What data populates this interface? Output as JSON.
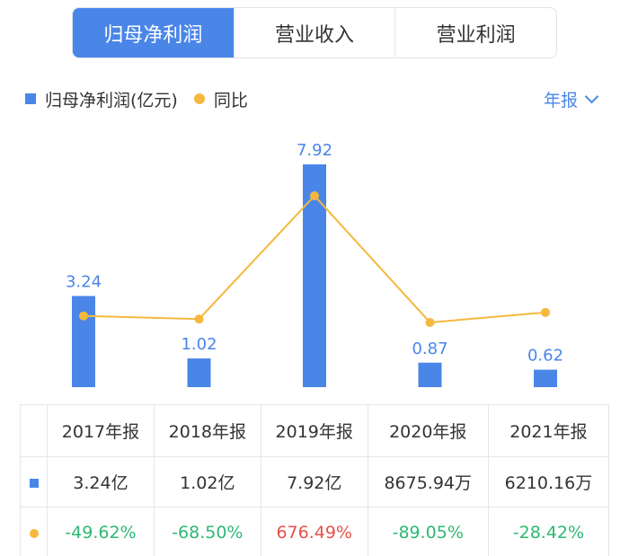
{
  "tabs": [
    {
      "label": "归母净利润",
      "active": true
    },
    {
      "label": "营业收入",
      "active": false
    },
    {
      "label": "营业利润",
      "active": false
    }
  ],
  "legend": {
    "bar_label": "归母净利润(亿元)",
    "line_label": "同比"
  },
  "period": {
    "label": "年报"
  },
  "colors": {
    "bar": "#4a86e8",
    "line": "#f5b83d",
    "negative": "#2eb872",
    "positive": "#e8504a"
  },
  "chart_data": {
    "type": "bar",
    "categories": [
      "2017年报",
      "2018年报",
      "2019年报",
      "2020年报",
      "2021年报"
    ],
    "series": [
      {
        "name": "归母净利润(亿元)",
        "type": "bar",
        "values": [
          3.24,
          1.02,
          7.92,
          0.87,
          0.62
        ],
        "labels": [
          "3.24",
          "1.02",
          "7.92",
          "0.87",
          "0.62"
        ]
      },
      {
        "name": "同比",
        "type": "line",
        "values": [
          -49.62,
          -68.5,
          676.49,
          -89.05,
          -28.42
        ]
      }
    ],
    "ylim": [
      0,
      7.92
    ],
    "line_ylim": [
      -100,
      676.49
    ],
    "grid": false,
    "legend": "top-left"
  },
  "table": {
    "headers": [
      "2017年报",
      "2018年报",
      "2019年报",
      "2020年报",
      "2021年报"
    ],
    "profit_row": [
      "3.24亿",
      "1.02亿",
      "7.92亿",
      "8675.94万",
      "6210.16万"
    ],
    "yoy_row": [
      "-49.62%",
      "-68.50%",
      "676.49%",
      "-89.05%",
      "-28.42%"
    ],
    "yoy_sign": [
      "neg",
      "neg",
      "pos",
      "neg",
      "neg"
    ]
  }
}
